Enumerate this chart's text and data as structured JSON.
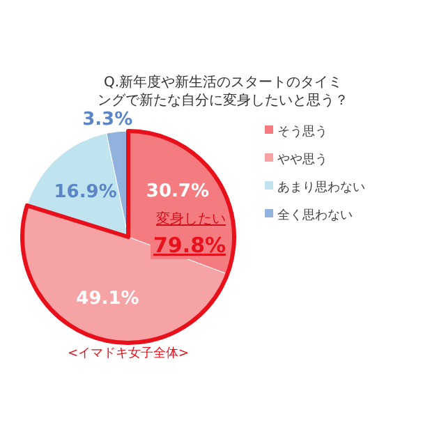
{
  "chart_data": {
    "type": "pie",
    "title": "Q.新年度や新生活のスタートのタイミングで新たな自分に変身したいと思う？",
    "categories": [
      "そう思う",
      "やや思う",
      "あまり思わない",
      "全く思わない"
    ],
    "values": [
      30.7,
      49.1,
      16.9,
      3.3
    ],
    "colors": [
      "#f47c80",
      "#f6a3a6",
      "#bfe4f0",
      "#92b2de"
    ],
    "value_labels": [
      "30.7%",
      "49.1%",
      "16.9%",
      "3.3%"
    ],
    "legend": "right",
    "annotations": [
      "変身したい",
      "79.8%",
      "<イマドキ女子全体>"
    ]
  }
}
